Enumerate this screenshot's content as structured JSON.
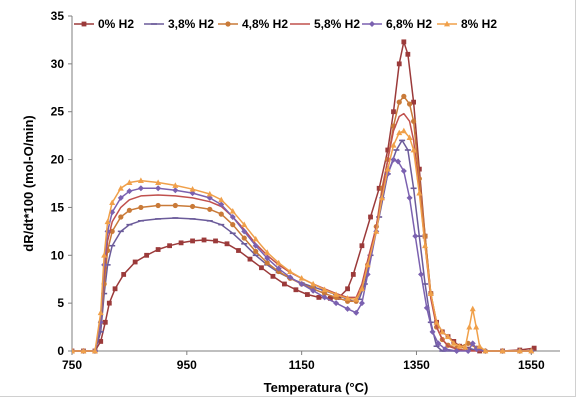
{
  "chart_data": {
    "type": "line",
    "title": "",
    "xlabel": "Temperatura (°C)",
    "ylabel": "dR/dt*100 (mol-O/min)",
    "xlim": [
      750,
      1600
    ],
    "ylim": [
      0,
      35
    ],
    "x_ticks": [
      750,
      950,
      1150,
      1350,
      1550
    ],
    "y_ticks": [
      0,
      5,
      10,
      15,
      20,
      25,
      30,
      35
    ],
    "grid": false,
    "legend_position": "top",
    "series": [
      {
        "name": "0% H2",
        "color": "#9b3a3a",
        "marker": "square",
        "points": [
          [
            750,
            0
          ],
          [
            770,
            0
          ],
          [
            790,
            0
          ],
          [
            800,
            1
          ],
          [
            808,
            3
          ],
          [
            815,
            5
          ],
          [
            825,
            6.5
          ],
          [
            840,
            8
          ],
          [
            860,
            9.3
          ],
          [
            880,
            10
          ],
          [
            900,
            10.6
          ],
          [
            920,
            11
          ],
          [
            940,
            11.3
          ],
          [
            960,
            11.5
          ],
          [
            980,
            11.6
          ],
          [
            1000,
            11.5
          ],
          [
            1020,
            11.2
          ],
          [
            1040,
            10.5
          ],
          [
            1060,
            9.6
          ],
          [
            1080,
            8.7
          ],
          [
            1100,
            7.8
          ],
          [
            1120,
            7
          ],
          [
            1140,
            6.4
          ],
          [
            1160,
            5.9
          ],
          [
            1180,
            5.6
          ],
          [
            1200,
            5.5
          ],
          [
            1215,
            5.6
          ],
          [
            1230,
            6.5
          ],
          [
            1240,
            8
          ],
          [
            1255,
            11
          ],
          [
            1270,
            14
          ],
          [
            1285,
            17
          ],
          [
            1300,
            21
          ],
          [
            1310,
            25
          ],
          [
            1320,
            30
          ],
          [
            1328,
            32.3
          ],
          [
            1335,
            31
          ],
          [
            1345,
            26
          ],
          [
            1355,
            19
          ],
          [
            1365,
            12
          ],
          [
            1375,
            6
          ],
          [
            1385,
            3
          ],
          [
            1395,
            2
          ],
          [
            1405,
            1.5
          ],
          [
            1415,
            1
          ],
          [
            1425,
            0.5
          ],
          [
            1440,
            0.2
          ],
          [
            1460,
            0
          ],
          [
            1500,
            0
          ],
          [
            1530,
            0.1
          ],
          [
            1555,
            0.3
          ]
        ]
      },
      {
        "name": "3,8% H2",
        "color": "#6b5b9a",
        "marker": "dash",
        "points": [
          [
            750,
            0
          ],
          [
            770,
            0
          ],
          [
            790,
            0
          ],
          [
            800,
            2
          ],
          [
            806,
            6
          ],
          [
            812,
            9
          ],
          [
            820,
            11
          ],
          [
            835,
            12.5
          ],
          [
            850,
            13.2
          ],
          [
            870,
            13.6
          ],
          [
            900,
            13.8
          ],
          [
            930,
            13.9
          ],
          [
            960,
            13.8
          ],
          [
            990,
            13.6
          ],
          [
            1010,
            13.2
          ],
          [
            1030,
            12.3
          ],
          [
            1050,
            11.2
          ],
          [
            1070,
            10
          ],
          [
            1090,
            9
          ],
          [
            1110,
            8.2
          ],
          [
            1130,
            7.6
          ],
          [
            1150,
            7.1
          ],
          [
            1170,
            6.7
          ],
          [
            1190,
            6.3
          ],
          [
            1210,
            5.9
          ],
          [
            1230,
            5.4
          ],
          [
            1240,
            5.2
          ],
          [
            1250,
            5.4
          ],
          [
            1260,
            7
          ],
          [
            1270,
            10
          ],
          [
            1285,
            14
          ],
          [
            1300,
            18.5
          ],
          [
            1315,
            21
          ],
          [
            1325,
            22
          ],
          [
            1335,
            21
          ],
          [
            1345,
            17
          ],
          [
            1355,
            12
          ],
          [
            1365,
            7
          ],
          [
            1375,
            3
          ],
          [
            1385,
            0.5
          ],
          [
            1395,
            0
          ],
          [
            1420,
            0
          ],
          [
            1440,
            0.3
          ],
          [
            1460,
            0
          ],
          [
            1500,
            0
          ],
          [
            1530,
            0
          ],
          [
            1550,
            0
          ]
        ]
      },
      {
        "name": "4,8% H2",
        "color": "#c97a38",
        "marker": "circle",
        "points": [
          [
            750,
            0
          ],
          [
            770,
            0
          ],
          [
            790,
            0
          ],
          [
            800,
            3
          ],
          [
            806,
            7
          ],
          [
            812,
            10.5
          ],
          [
            820,
            12.5
          ],
          [
            835,
            14
          ],
          [
            850,
            14.7
          ],
          [
            870,
            15
          ],
          [
            900,
            15.2
          ],
          [
            930,
            15.2
          ],
          [
            960,
            15.1
          ],
          [
            990,
            14.8
          ],
          [
            1010,
            14.3
          ],
          [
            1030,
            13.2
          ],
          [
            1050,
            11.8
          ],
          [
            1070,
            10.4
          ],
          [
            1090,
            9.2
          ],
          [
            1110,
            8.3
          ],
          [
            1130,
            7.6
          ],
          [
            1150,
            7
          ],
          [
            1170,
            6.5
          ],
          [
            1190,
            6
          ],
          [
            1210,
            5.6
          ],
          [
            1230,
            5.2
          ],
          [
            1245,
            5.2
          ],
          [
            1255,
            6.5
          ],
          [
            1265,
            9
          ],
          [
            1280,
            13
          ],
          [
            1290,
            17
          ],
          [
            1300,
            20
          ],
          [
            1310,
            23.5
          ],
          [
            1320,
            26
          ],
          [
            1328,
            26.6
          ],
          [
            1338,
            25.8
          ],
          [
            1345,
            24
          ],
          [
            1355,
            18
          ],
          [
            1365,
            12
          ],
          [
            1375,
            6
          ],
          [
            1385,
            2.5
          ],
          [
            1395,
            1.2
          ],
          [
            1405,
            0.6
          ],
          [
            1420,
            0.3
          ],
          [
            1440,
            0.8
          ],
          [
            1455,
            0.3
          ],
          [
            1470,
            0
          ],
          [
            1500,
            0
          ],
          [
            1530,
            0
          ],
          [
            1550,
            0
          ]
        ]
      },
      {
        "name": "5,8% H2",
        "color": "#c0504d",
        "marker": "none",
        "points": [
          [
            750,
            0
          ],
          [
            770,
            0
          ],
          [
            790,
            0
          ],
          [
            800,
            3
          ],
          [
            806,
            8
          ],
          [
            812,
            11.5
          ],
          [
            820,
            13.5
          ],
          [
            835,
            15
          ],
          [
            850,
            15.8
          ],
          [
            870,
            16.2
          ],
          [
            900,
            16.3
          ],
          [
            930,
            16.2
          ],
          [
            960,
            16
          ],
          [
            990,
            15.6
          ],
          [
            1010,
            15.1
          ],
          [
            1030,
            14
          ],
          [
            1050,
            12.7
          ],
          [
            1070,
            11.2
          ],
          [
            1090,
            10
          ],
          [
            1110,
            9
          ],
          [
            1130,
            8.2
          ],
          [
            1150,
            7.6
          ],
          [
            1170,
            7
          ],
          [
            1190,
            6.5
          ],
          [
            1210,
            6
          ],
          [
            1230,
            5.6
          ],
          [
            1245,
            5.6
          ],
          [
            1255,
            7
          ],
          [
            1265,
            9.5
          ],
          [
            1280,
            13
          ],
          [
            1290,
            16.5
          ],
          [
            1300,
            20
          ],
          [
            1310,
            23
          ],
          [
            1320,
            24.5
          ],
          [
            1328,
            24.8
          ],
          [
            1338,
            24
          ],
          [
            1345,
            22
          ],
          [
            1355,
            17
          ],
          [
            1365,
            11
          ],
          [
            1375,
            5.5
          ],
          [
            1385,
            2.5
          ],
          [
            1395,
            1.2
          ],
          [
            1405,
            0.5
          ],
          [
            1420,
            0.2
          ],
          [
            1440,
            0
          ],
          [
            1470,
            0
          ],
          [
            1500,
            0
          ],
          [
            1530,
            0
          ],
          [
            1550,
            0
          ]
        ]
      },
      {
        "name": "6,8% H2",
        "color": "#7b61b0",
        "marker": "diamond",
        "points": [
          [
            750,
            0
          ],
          [
            770,
            0
          ],
          [
            790,
            0
          ],
          [
            800,
            3
          ],
          [
            806,
            9
          ],
          [
            812,
            12.5
          ],
          [
            820,
            14.5
          ],
          [
            835,
            16
          ],
          [
            850,
            16.7
          ],
          [
            870,
            17
          ],
          [
            900,
            17
          ],
          [
            930,
            16.8
          ],
          [
            960,
            16.5
          ],
          [
            990,
            16
          ],
          [
            1010,
            15.3
          ],
          [
            1030,
            14
          ],
          [
            1050,
            12.5
          ],
          [
            1070,
            11
          ],
          [
            1090,
            9.7
          ],
          [
            1110,
            8.6
          ],
          [
            1130,
            7.7
          ],
          [
            1150,
            7
          ],
          [
            1170,
            6.3
          ],
          [
            1190,
            5.6
          ],
          [
            1210,
            5
          ],
          [
            1230,
            4.4
          ],
          [
            1245,
            4
          ],
          [
            1255,
            5
          ],
          [
            1265,
            8
          ],
          [
            1280,
            12.5
          ],
          [
            1290,
            16
          ],
          [
            1300,
            18.5
          ],
          [
            1310,
            20
          ],
          [
            1318,
            19.8
          ],
          [
            1328,
            18.8
          ],
          [
            1338,
            16
          ],
          [
            1348,
            12
          ],
          [
            1358,
            8
          ],
          [
            1368,
            4.5
          ],
          [
            1378,
            2
          ],
          [
            1388,
            0.8
          ],
          [
            1400,
            0.2
          ],
          [
            1420,
            0
          ],
          [
            1440,
            0
          ],
          [
            1448,
            0.8
          ],
          [
            1455,
            0.2
          ],
          [
            1470,
            0
          ],
          [
            1500,
            0
          ],
          [
            1530,
            0
          ],
          [
            1550,
            0
          ]
        ]
      },
      {
        "name": "8% H2",
        "color": "#f0a04a",
        "marker": "triangle",
        "points": [
          [
            750,
            0
          ],
          [
            770,
            0
          ],
          [
            790,
            0
          ],
          [
            800,
            4
          ],
          [
            806,
            10
          ],
          [
            812,
            13.5
          ],
          [
            820,
            15.5
          ],
          [
            835,
            17
          ],
          [
            850,
            17.6
          ],
          [
            870,
            17.8
          ],
          [
            900,
            17.6
          ],
          [
            930,
            17.3
          ],
          [
            960,
            16.9
          ],
          [
            990,
            16.4
          ],
          [
            1010,
            15.8
          ],
          [
            1030,
            14.6
          ],
          [
            1050,
            13.2
          ],
          [
            1070,
            11.7
          ],
          [
            1090,
            10.3
          ],
          [
            1110,
            9.2
          ],
          [
            1130,
            8.3
          ],
          [
            1150,
            7.6
          ],
          [
            1170,
            7
          ],
          [
            1190,
            6.4
          ],
          [
            1210,
            5.9
          ],
          [
            1230,
            5.5
          ],
          [
            1245,
            5.4
          ],
          [
            1255,
            6.5
          ],
          [
            1265,
            9
          ],
          [
            1280,
            12.5
          ],
          [
            1290,
            16
          ],
          [
            1300,
            19
          ],
          [
            1310,
            21.5
          ],
          [
            1320,
            22.8
          ],
          [
            1328,
            23
          ],
          [
            1338,
            22.3
          ],
          [
            1345,
            21
          ],
          [
            1355,
            16.5
          ],
          [
            1365,
            11
          ],
          [
            1375,
            6
          ],
          [
            1385,
            3
          ],
          [
            1395,
            2
          ],
          [
            1405,
            1.5
          ],
          [
            1415,
            0.8
          ],
          [
            1425,
            0.5
          ],
          [
            1435,
            0.4
          ],
          [
            1442,
            2.5
          ],
          [
            1448,
            4.4
          ],
          [
            1454,
            2.5
          ],
          [
            1460,
            0.5
          ],
          [
            1470,
            0
          ],
          [
            1500,
            0
          ],
          [
            1530,
            0
          ],
          [
            1550,
            0
          ]
        ]
      }
    ]
  }
}
